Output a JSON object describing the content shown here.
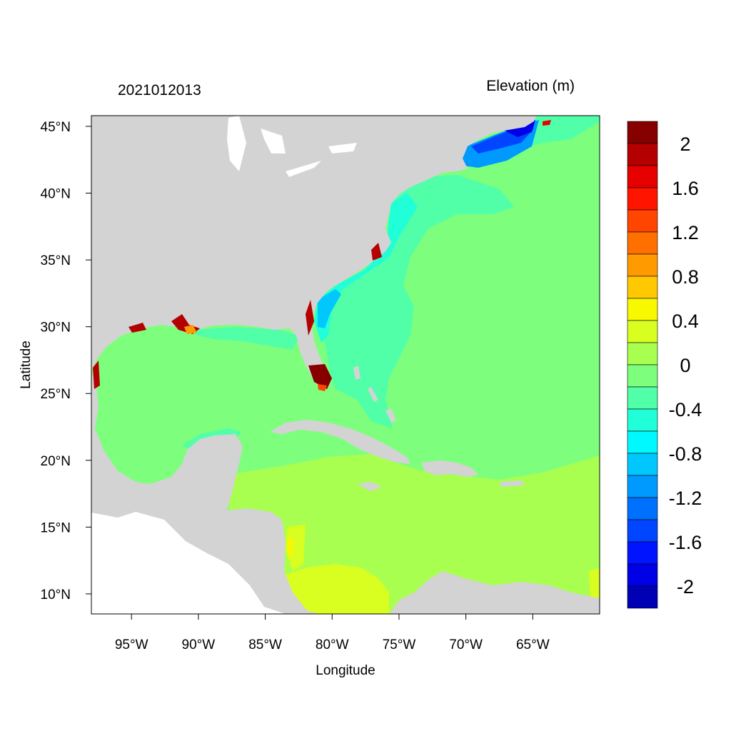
{
  "header": {
    "timestamp": "2021012013",
    "variable": "Elevation (m)"
  },
  "axes": {
    "xlabel": "Longitude",
    "ylabel": "Latitude",
    "xticks": [
      "95°W",
      "90°W",
      "85°W",
      "80°W",
      "75°W",
      "70°W",
      "65°W"
    ],
    "xtick_values": [
      -95,
      -90,
      -85,
      -80,
      -75,
      -70,
      -65
    ],
    "yticks": [
      "45°N",
      "40°N",
      "35°N",
      "30°N",
      "25°N",
      "20°N",
      "15°N",
      "10°N"
    ],
    "ytick_values": [
      45,
      40,
      35,
      30,
      25,
      20,
      15,
      10
    ],
    "lon_range": [
      -98,
      -60
    ],
    "lat_range": [
      8.5,
      45.8
    ]
  },
  "colorbar": {
    "labels": [
      "2",
      "1.6",
      "1.2",
      "0.8",
      "0.4",
      "0",
      "-0.4",
      "-0.8",
      "-1.2",
      "-1.6",
      "-2"
    ],
    "colors": [
      "#870000",
      "#b40000",
      "#e60000",
      "#ff1400",
      "#ff4500",
      "#ff7000",
      "#ff9a00",
      "#ffc800",
      "#f8f800",
      "#d8ff20",
      "#a8ff50",
      "#7dff7d",
      "#50ffa8",
      "#20ffd8",
      "#00f8ff",
      "#00c8ff",
      "#009aff",
      "#0070ff",
      "#0045ff",
      "#0014ff",
      "#0000e6",
      "#0000b4"
    ]
  },
  "colors": {
    "land": "#d3d3d3",
    "no_data": "#ffffff"
  }
}
